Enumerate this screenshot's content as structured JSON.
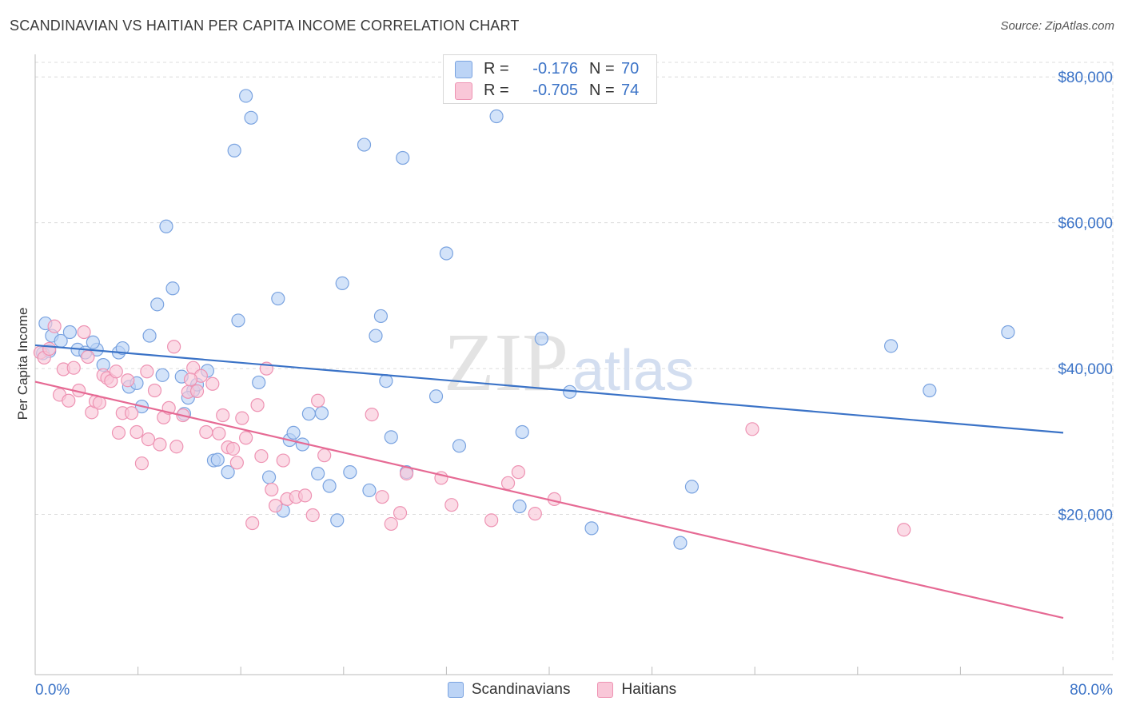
{
  "header": {
    "title": "SCANDINAVIAN VS HAITIAN PER CAPITA INCOME CORRELATION CHART",
    "source": "Source: ZipAtlas.com"
  },
  "watermark": {
    "zip": "ZIP",
    "atlas": "atlas"
  },
  "legend_box": {
    "rows": [
      {
        "r_label": "R =",
        "r_value": "-0.176",
        "n_label": "N =",
        "n_value": "70",
        "fill": "#bcd4f6",
        "stroke": "#7aa3e0"
      },
      {
        "r_label": "R =",
        "r_value": "-0.705",
        "n_label": "N =",
        "n_value": "74",
        "fill": "#f9c7d8",
        "stroke": "#ee93b3"
      }
    ]
  },
  "legend_bottom": [
    {
      "label": "Scandinavians",
      "fill": "#bcd4f6",
      "stroke": "#7aa3e0"
    },
    {
      "label": "Haitians",
      "fill": "#f9c7d8",
      "stroke": "#ee93b3"
    }
  ],
  "chart_data": {
    "type": "scatter",
    "title": "SCANDINAVIAN VS HAITIAN PER CAPITA INCOME CORRELATION CHART",
    "xlabel": "",
    "ylabel": "Per Capita Income",
    "xlim": [
      0,
      80
    ],
    "ylim": [
      0,
      82000
    ],
    "x_tick_labels": [
      "0.0%",
      "80.0%"
    ],
    "y_ticks": [
      20000,
      40000,
      60000,
      80000
    ],
    "y_tick_labels": [
      "$20,000",
      "$40,000",
      "$60,000",
      "$80,000"
    ],
    "grid": true,
    "legend_position": "bottom",
    "series": [
      {
        "name": "Scandinavians",
        "color": "#3b73c7",
        "fill": "#bcd4f6",
        "trend": [
          [
            0,
            43200
          ],
          [
            80,
            31200
          ]
        ],
        "points": [
          [
            0.8,
            46200
          ],
          [
            1.3,
            44500
          ],
          [
            2.0,
            43800
          ],
          [
            2.7,
            45000
          ],
          [
            3.3,
            42600
          ],
          [
            3.9,
            42200
          ],
          [
            0.6,
            42100
          ],
          [
            4.8,
            42600
          ],
          [
            5.3,
            40500
          ],
          [
            6.5,
            42200
          ],
          [
            6.8,
            42800
          ],
          [
            7.3,
            37500
          ],
          [
            7.9,
            38000
          ],
          [
            8.3,
            34800
          ],
          [
            8.9,
            44500
          ],
          [
            9.5,
            48800
          ],
          [
            9.9,
            39100
          ],
          [
            10.2,
            59500
          ],
          [
            10.7,
            51000
          ],
          [
            11.4,
            38900
          ],
          [
            11.6,
            33800
          ],
          [
            12.3,
            37000
          ],
          [
            12.6,
            37800
          ],
          [
            13.4,
            39700
          ],
          [
            13.9,
            27400
          ],
          [
            14.2,
            27500
          ],
          [
            15.0,
            25800
          ],
          [
            15.5,
            69900
          ],
          [
            15.8,
            46600
          ],
          [
            16.4,
            77400
          ],
          [
            16.8,
            74400
          ],
          [
            17.4,
            38100
          ],
          [
            18.2,
            25100
          ],
          [
            18.9,
            49600
          ],
          [
            19.3,
            20500
          ],
          [
            19.8,
            30200
          ],
          [
            20.1,
            31200
          ],
          [
            20.8,
            29600
          ],
          [
            21.3,
            33800
          ],
          [
            22.0,
            25600
          ],
          [
            22.3,
            33900
          ],
          [
            22.9,
            23900
          ],
          [
            23.5,
            19200
          ],
          [
            23.9,
            51700
          ],
          [
            24.5,
            25800
          ],
          [
            25.6,
            70700
          ],
          [
            26.0,
            23300
          ],
          [
            26.5,
            44500
          ],
          [
            26.9,
            47200
          ],
          [
            27.3,
            38300
          ],
          [
            27.7,
            30600
          ],
          [
            28.6,
            68900
          ],
          [
            28.9,
            25800
          ],
          [
            31.2,
            36200
          ],
          [
            32.0,
            55800
          ],
          [
            33.0,
            29400
          ],
          [
            35.9,
            74600
          ],
          [
            37.7,
            21100
          ],
          [
            37.9,
            31300
          ],
          [
            39.4,
            44100
          ],
          [
            41.6,
            36800
          ],
          [
            43.3,
            18100
          ],
          [
            50.2,
            16100
          ],
          [
            51.1,
            23800
          ],
          [
            66.6,
            43100
          ],
          [
            69.6,
            37000
          ],
          [
            75.7,
            45000
          ],
          [
            1.1,
            42400
          ],
          [
            4.5,
            43600
          ],
          [
            11.9,
            36000
          ]
        ]
      },
      {
        "name": "Haitians",
        "color": "#e66a94",
        "fill": "#f9c7d8",
        "trend": [
          [
            0,
            38200
          ],
          [
            80,
            5800
          ]
        ],
        "points": [
          [
            0.4,
            42200
          ],
          [
            0.7,
            41500
          ],
          [
            1.1,
            42700
          ],
          [
            1.5,
            45800
          ],
          [
            1.9,
            36400
          ],
          [
            2.2,
            39900
          ],
          [
            2.6,
            35600
          ],
          [
            3.0,
            40100
          ],
          [
            3.4,
            37000
          ],
          [
            3.8,
            45000
          ],
          [
            4.1,
            41600
          ],
          [
            4.4,
            34000
          ],
          [
            4.7,
            35500
          ],
          [
            5.0,
            35300
          ],
          [
            5.3,
            39100
          ],
          [
            5.6,
            38700
          ],
          [
            5.9,
            38300
          ],
          [
            6.3,
            39600
          ],
          [
            6.5,
            31200
          ],
          [
            6.8,
            33900
          ],
          [
            7.2,
            38400
          ],
          [
            7.5,
            33900
          ],
          [
            7.9,
            31300
          ],
          [
            8.3,
            27000
          ],
          [
            8.7,
            39600
          ],
          [
            8.8,
            30300
          ],
          [
            9.3,
            37000
          ],
          [
            9.7,
            29600
          ],
          [
            10.0,
            33300
          ],
          [
            10.4,
            34600
          ],
          [
            10.8,
            43000
          ],
          [
            11.0,
            29300
          ],
          [
            11.5,
            33600
          ],
          [
            11.9,
            36800
          ],
          [
            12.3,
            40100
          ],
          [
            12.6,
            36900
          ],
          [
            12.9,
            39000
          ],
          [
            13.3,
            31300
          ],
          [
            13.8,
            37900
          ],
          [
            14.3,
            31100
          ],
          [
            14.6,
            33600
          ],
          [
            15.0,
            29200
          ],
          [
            15.4,
            29000
          ],
          [
            15.7,
            27100
          ],
          [
            16.1,
            33200
          ],
          [
            16.4,
            30500
          ],
          [
            16.9,
            18800
          ],
          [
            17.3,
            35000
          ],
          [
            17.6,
            28000
          ],
          [
            18.0,
            40000
          ],
          [
            18.4,
            23400
          ],
          [
            18.7,
            21200
          ],
          [
            19.3,
            27400
          ],
          [
            19.6,
            22100
          ],
          [
            20.3,
            22400
          ],
          [
            21.0,
            22600
          ],
          [
            21.6,
            19900
          ],
          [
            22.0,
            35600
          ],
          [
            22.5,
            28100
          ],
          [
            26.2,
            33700
          ],
          [
            27.0,
            22400
          ],
          [
            27.7,
            18700
          ],
          [
            28.4,
            20200
          ],
          [
            28.9,
            25600
          ],
          [
            31.6,
            25000
          ],
          [
            32.4,
            21300
          ],
          [
            35.5,
            19200
          ],
          [
            36.8,
            24300
          ],
          [
            37.6,
            25800
          ],
          [
            38.9,
            20100
          ],
          [
            40.4,
            22100
          ],
          [
            55.8,
            31700
          ],
          [
            67.6,
            17900
          ],
          [
            12.1,
            38500
          ]
        ]
      }
    ]
  }
}
